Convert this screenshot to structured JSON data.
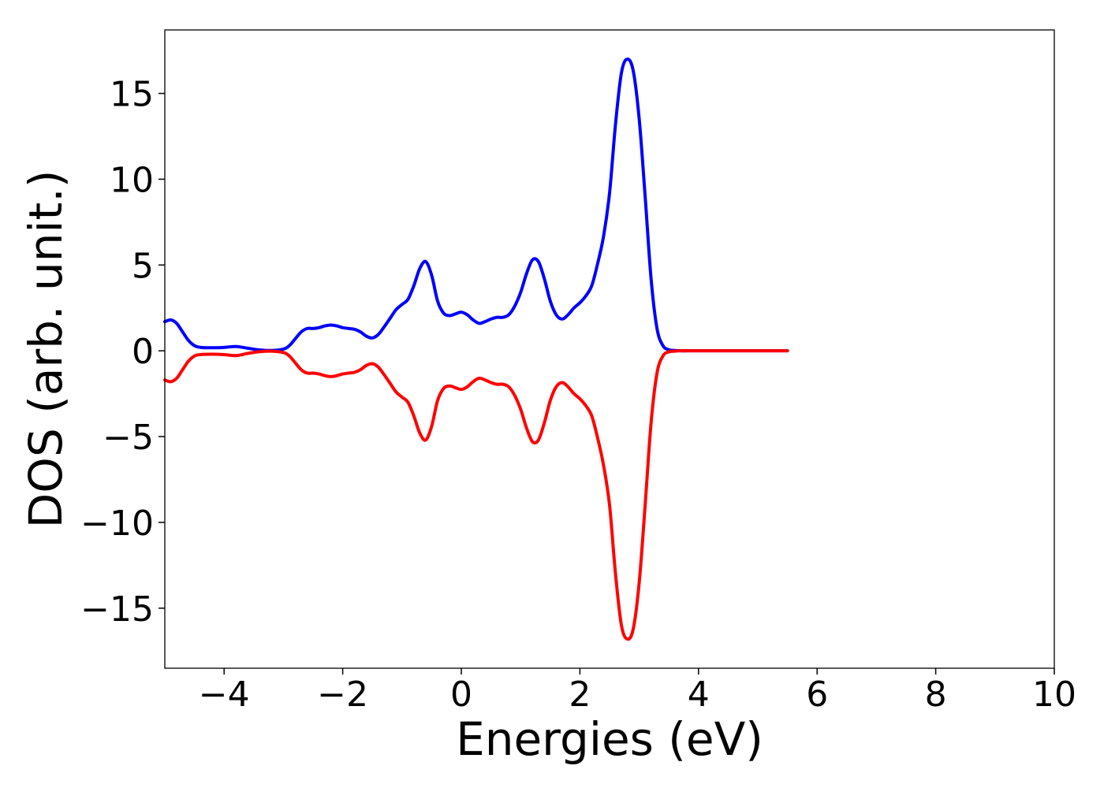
{
  "chart_data": {
    "type": "line",
    "title": "",
    "xlabel": "Energies (eV)",
    "ylabel": "DOS (arb. unit.)",
    "xlim": [
      -5,
      10
    ],
    "ylim": [
      -18.5,
      18.7
    ],
    "x_ticks": [
      -4,
      -2,
      0,
      2,
      4,
      6,
      8,
      10
    ],
    "x_tick_labels": [
      "−4",
      "−2",
      "0",
      "2",
      "4",
      "6",
      "8",
      "10"
    ],
    "y_ticks": [
      -15,
      -10,
      -5,
      0,
      5,
      10,
      15
    ],
    "y_tick_labels": [
      "−15",
      "−10",
      "−5",
      "0",
      "5",
      "10",
      "15"
    ],
    "grid": false,
    "legend": "none",
    "series": [
      {
        "color": "#0000ff",
        "x": [
          -5.0,
          -4.9,
          -4.8,
          -4.7,
          -4.6,
          -4.5,
          -4.4,
          -4.2,
          -4.0,
          -3.8,
          -3.6,
          -3.4,
          -3.2,
          -3.0,
          -2.9,
          -2.8,
          -2.7,
          -2.6,
          -2.5,
          -2.4,
          -2.3,
          -2.2,
          -2.1,
          -2.0,
          -1.9,
          -1.8,
          -1.7,
          -1.6,
          -1.5,
          -1.4,
          -1.3,
          -1.2,
          -1.1,
          -1.0,
          -0.9,
          -0.8,
          -0.7,
          -0.6,
          -0.5,
          -0.4,
          -0.3,
          -0.2,
          -0.1,
          0.0,
          0.1,
          0.2,
          0.3,
          0.4,
          0.5,
          0.6,
          0.7,
          0.8,
          0.9,
          1.0,
          1.1,
          1.2,
          1.3,
          1.4,
          1.5,
          1.6,
          1.7,
          1.8,
          1.9,
          2.0,
          2.1,
          2.2,
          2.3,
          2.4,
          2.5,
          2.6,
          2.7,
          2.8,
          2.9,
          3.0,
          3.1,
          3.2,
          3.3,
          3.4,
          3.5,
          3.6,
          3.7,
          3.8,
          3.9,
          4.0,
          4.5,
          5.0,
          5.5
        ],
        "y": [
          1.7,
          1.8,
          1.6,
          1.1,
          0.6,
          0.3,
          0.2,
          0.18,
          0.2,
          0.25,
          0.15,
          0.05,
          0.02,
          0.1,
          0.3,
          0.7,
          1.1,
          1.3,
          1.3,
          1.35,
          1.45,
          1.5,
          1.45,
          1.35,
          1.3,
          1.25,
          1.1,
          0.85,
          0.75,
          0.95,
          1.4,
          1.9,
          2.4,
          2.7,
          3.0,
          3.8,
          4.8,
          5.2,
          4.4,
          2.9,
          2.2,
          2.05,
          2.15,
          2.25,
          2.1,
          1.8,
          1.6,
          1.7,
          1.85,
          1.95,
          1.95,
          2.1,
          2.6,
          3.4,
          4.5,
          5.3,
          5.2,
          4.2,
          2.9,
          2.1,
          1.85,
          2.1,
          2.5,
          2.8,
          3.2,
          3.8,
          5.1,
          6.7,
          9.2,
          13.2,
          16.2,
          17.0,
          16.3,
          13.5,
          9.0,
          4.2,
          1.3,
          0.3,
          0.06,
          0.02,
          0.0,
          0.0,
          0.0,
          0.0,
          0.0,
          0.0,
          0.0
        ]
      },
      {
        "color": "#ff0000",
        "x": [
          -5.0,
          -4.9,
          -4.8,
          -4.7,
          -4.6,
          -4.5,
          -4.4,
          -4.2,
          -4.0,
          -3.8,
          -3.6,
          -3.4,
          -3.2,
          -3.0,
          -2.9,
          -2.8,
          -2.7,
          -2.6,
          -2.5,
          -2.4,
          -2.3,
          -2.2,
          -2.1,
          -2.0,
          -1.9,
          -1.8,
          -1.7,
          -1.6,
          -1.5,
          -1.4,
          -1.3,
          -1.2,
          -1.1,
          -1.0,
          -0.9,
          -0.8,
          -0.7,
          -0.6,
          -0.5,
          -0.4,
          -0.3,
          -0.2,
          -0.1,
          0.0,
          0.1,
          0.2,
          0.3,
          0.4,
          0.5,
          0.6,
          0.7,
          0.8,
          0.9,
          1.0,
          1.1,
          1.2,
          1.3,
          1.4,
          1.5,
          1.6,
          1.7,
          1.8,
          1.9,
          2.0,
          2.1,
          2.2,
          2.3,
          2.4,
          2.5,
          2.6,
          2.7,
          2.8,
          2.9,
          3.0,
          3.1,
          3.2,
          3.3,
          3.4,
          3.5,
          3.6,
          3.7,
          3.8,
          3.9,
          4.0,
          4.5,
          5.0,
          5.5
        ],
        "y": [
          -1.7,
          -1.8,
          -1.6,
          -1.1,
          -0.6,
          -0.3,
          -0.22,
          -0.2,
          -0.22,
          -0.28,
          -0.15,
          -0.05,
          -0.02,
          -0.1,
          -0.3,
          -0.7,
          -1.1,
          -1.3,
          -1.3,
          -1.35,
          -1.45,
          -1.5,
          -1.45,
          -1.35,
          -1.3,
          -1.25,
          -1.1,
          -0.85,
          -0.75,
          -0.95,
          -1.4,
          -1.9,
          -2.4,
          -2.7,
          -3.0,
          -3.8,
          -4.8,
          -5.2,
          -4.4,
          -2.9,
          -2.2,
          -2.05,
          -2.15,
          -2.25,
          -2.1,
          -1.8,
          -1.6,
          -1.7,
          -1.85,
          -1.95,
          -1.95,
          -2.1,
          -2.6,
          -3.4,
          -4.5,
          -5.3,
          -5.2,
          -4.2,
          -2.9,
          -2.1,
          -1.85,
          -2.1,
          -2.5,
          -2.8,
          -3.2,
          -3.8,
          -5.1,
          -6.7,
          -9.0,
          -13.0,
          -16.0,
          -16.8,
          -16.2,
          -13.5,
          -9.0,
          -4.2,
          -1.3,
          -0.3,
          -0.06,
          -0.02,
          0.0,
          0.0,
          0.0,
          0.0,
          0.0,
          0.0,
          0.0
        ]
      }
    ]
  }
}
